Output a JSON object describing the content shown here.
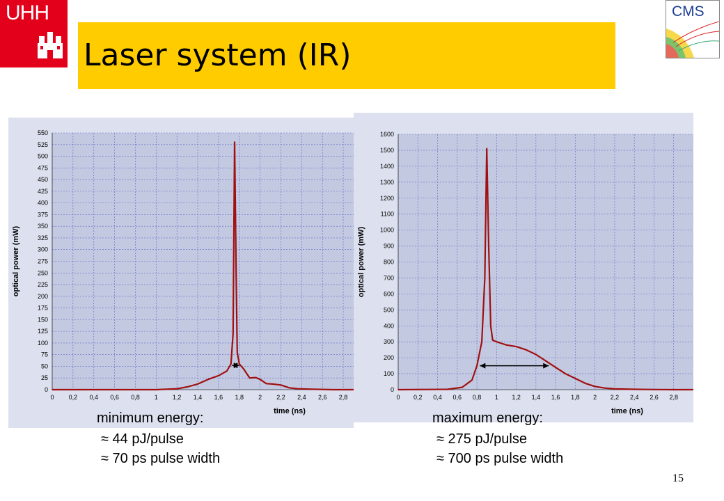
{
  "logos": {
    "uhh": "UHH",
    "cms": "CMS"
  },
  "colors": {
    "uhh_red": "#e2001a",
    "title_bar": "#ffcc00",
    "curve": "#a01010",
    "plot_background": "#c3c9e1",
    "grid": "#5a6ac8",
    "arrow": "#000000"
  },
  "title": "Laser system (IR)",
  "chart_data": [
    {
      "type": "line",
      "xlabel": "time (ns)",
      "ylabel": "optical power (mW)",
      "xlim": [
        0,
        2.9
      ],
      "ylim": [
        0,
        550
      ],
      "x_ticks": [
        "0",
        "0,2",
        "0,4",
        "0,6",
        "0,8",
        "1",
        "1,2",
        "1,4",
        "1,6",
        "1,8",
        "2",
        "2,2",
        "2,4",
        "2,6",
        "2,8"
      ],
      "y_ticks": [
        "0",
        "25",
        "50",
        "75",
        "100",
        "125",
        "150",
        "175",
        "200",
        "225",
        "250",
        "275",
        "300",
        "325",
        "350",
        "375",
        "400",
        "425",
        "450",
        "475",
        "500",
        "525",
        "550"
      ],
      "grid": true,
      "series": [
        {
          "x": [
            0,
            1.0,
            1.2,
            1.3,
            1.4,
            1.5,
            1.6,
            1.68,
            1.72,
            1.74,
            1.755,
            1.77,
            1.78,
            1.8,
            1.84,
            1.9,
            1.96,
            2.0,
            2.06,
            2.12,
            2.2,
            2.28,
            2.36,
            2.5,
            2.7,
            2.9
          ],
          "y": [
            0,
            0,
            2,
            6,
            12,
            22,
            30,
            40,
            55,
            120,
            530,
            240,
            80,
            55,
            45,
            25,
            26,
            22,
            13,
            12,
            10,
            4,
            2,
            1,
            0,
            0
          ]
        }
      ],
      "annotation": {
        "type": "double-arrow",
        "x_start": 1.73,
        "x_end": 1.8,
        "y": 52
      }
    },
    {
      "type": "line",
      "xlabel": "time (ns)",
      "ylabel": "optical power (mW)",
      "xlim": [
        0,
        3.0
      ],
      "ylim": [
        0,
        1600
      ],
      "x_ticks": [
        "0",
        "0,2",
        "0,4",
        "0,6",
        "0,8",
        "1",
        "1,2",
        "1,4",
        "1,6",
        "1,8",
        "2",
        "2,2",
        "2,4",
        "2,6",
        "2,8"
      ],
      "y_ticks": [
        "0",
        "100",
        "200",
        "300",
        "400",
        "500",
        "600",
        "700",
        "800",
        "900",
        "1000",
        "1100",
        "1200",
        "1300",
        "1400",
        "1500",
        "1600"
      ],
      "grid": true,
      "series": [
        {
          "x": [
            0,
            0.5,
            0.65,
            0.75,
            0.8,
            0.85,
            0.88,
            0.9,
            0.92,
            0.94,
            0.96,
            0.98,
            1.0,
            1.05,
            1.1,
            1.2,
            1.3,
            1.4,
            1.5,
            1.6,
            1.7,
            1.8,
            1.9,
            2.0,
            2.1,
            2.2,
            2.4,
            2.6,
            2.8,
            3.0
          ],
          "y": [
            0,
            2,
            15,
            60,
            150,
            300,
            700,
            1510,
            900,
            400,
            310,
            305,
            300,
            290,
            280,
            270,
            250,
            220,
            180,
            140,
            100,
            70,
            40,
            20,
            10,
            5,
            2,
            1,
            0,
            0
          ]
        }
      ],
      "annotation": {
        "type": "double-arrow",
        "x_start": 0.83,
        "x_end": 1.53,
        "y": 150
      }
    }
  ],
  "captions": {
    "left": {
      "heading": "minimum energy:",
      "line1": "≈ 44 pJ/pulse",
      "line2": "≈ 70 ps pulse width"
    },
    "right": {
      "heading": "maximum energy:",
      "line1": "≈ 275 pJ/pulse",
      "line2": "≈ 700 ps pulse width"
    }
  },
  "slide_number": "15"
}
